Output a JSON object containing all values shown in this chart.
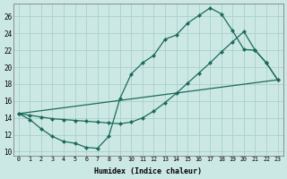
{
  "xlabel": "Humidex (Indice chaleur)",
  "bg_color": "#cce8e5",
  "grid_color": "#aad0cc",
  "line_color": "#1a6b5a",
  "xlim": [
    -0.5,
    23.5
  ],
  "ylim": [
    9.5,
    27.5
  ],
  "xticks": [
    0,
    1,
    2,
    3,
    4,
    5,
    6,
    7,
    8,
    9,
    10,
    11,
    12,
    13,
    14,
    15,
    16,
    17,
    18,
    19,
    20,
    21,
    22,
    23
  ],
  "yticks": [
    10,
    12,
    14,
    16,
    18,
    20,
    22,
    24,
    26
  ],
  "line1_x": [
    0,
    1,
    2,
    3,
    4,
    5,
    6,
    7,
    8,
    9,
    10,
    11,
    12,
    13,
    14,
    15,
    16,
    17,
    18,
    19,
    20,
    21,
    22,
    23
  ],
  "line1_y": [
    14.5,
    13.8,
    12.7,
    11.8,
    11.2,
    11.0,
    10.5,
    10.4,
    11.8,
    16.3,
    19.2,
    20.5,
    21.4,
    23.3,
    23.8,
    25.2,
    26.1,
    27.0,
    26.3,
    24.3,
    22.1,
    22.0,
    20.5,
    18.5
  ],
  "line2_x": [
    0,
    1,
    2,
    3,
    4,
    5,
    6,
    7,
    8,
    9,
    10,
    11,
    12,
    13,
    14,
    15,
    16,
    17,
    18,
    19,
    20,
    21,
    22,
    23
  ],
  "line2_y": [
    14.5,
    14.3,
    14.1,
    13.9,
    13.8,
    13.7,
    13.6,
    13.5,
    13.4,
    13.3,
    13.5,
    14.0,
    14.8,
    15.8,
    16.9,
    18.1,
    19.3,
    20.5,
    21.8,
    23.0,
    24.2,
    22.0,
    20.5,
    18.5
  ],
  "line3_x": [
    0,
    23
  ],
  "line3_y": [
    14.5,
    18.5
  ],
  "markersize": 2.5,
  "linewidth": 0.9
}
